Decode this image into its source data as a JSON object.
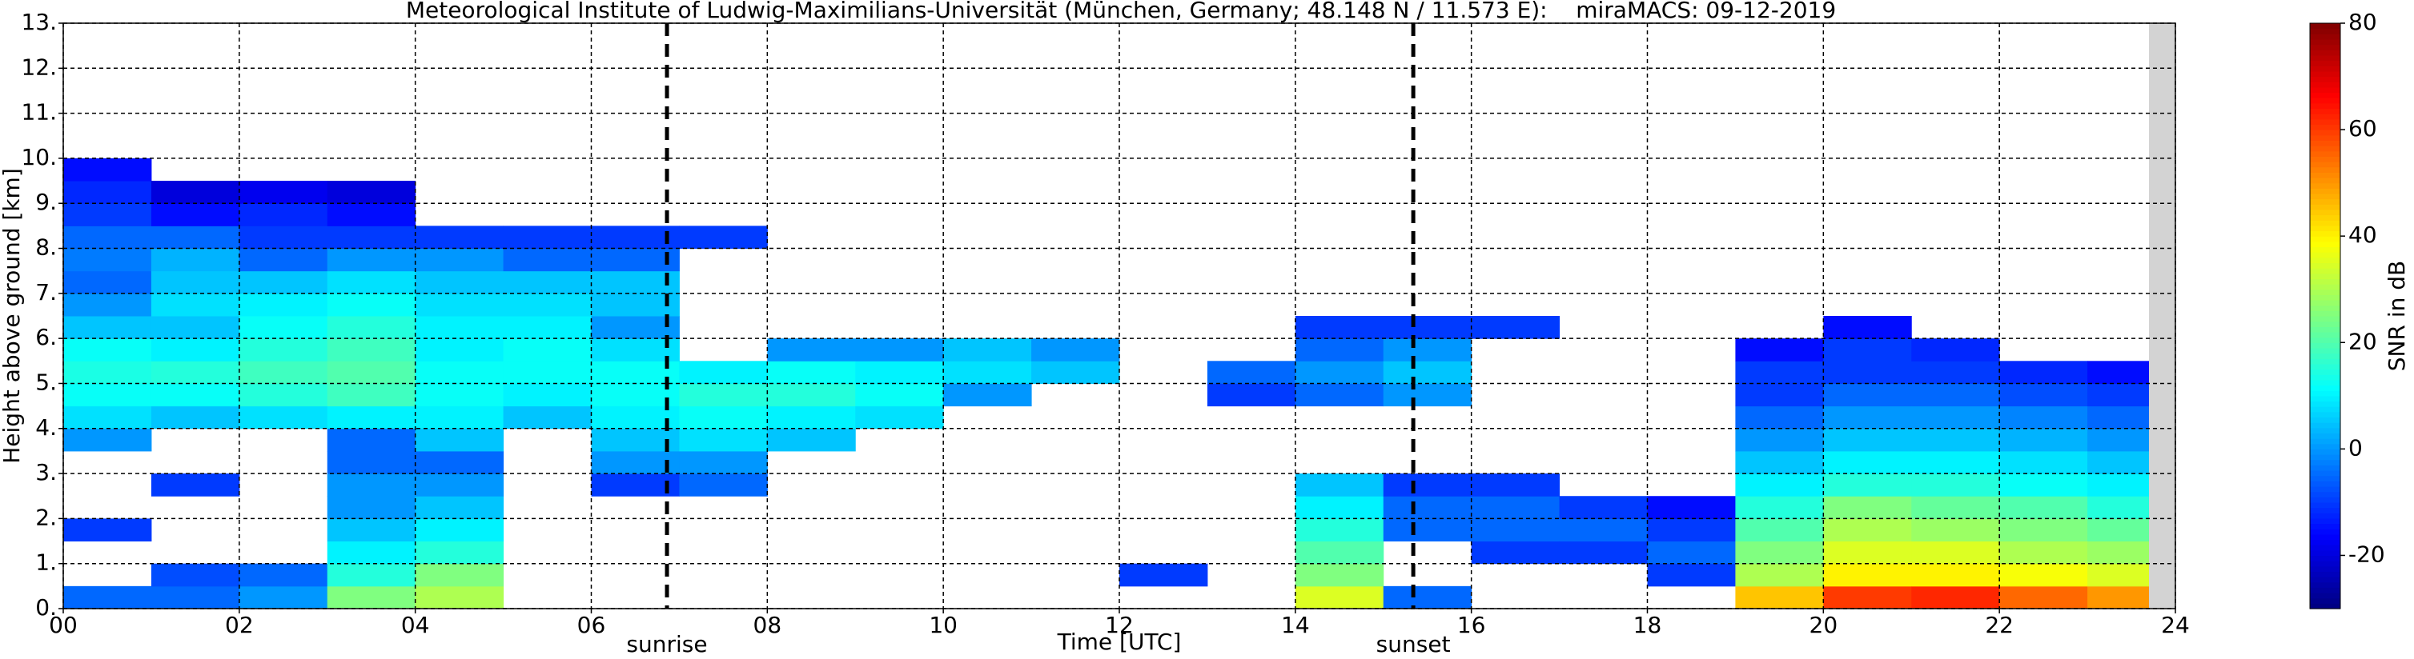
{
  "chart_data": {
    "type": "heatmap",
    "title": "Meteorological Institute of Ludwig-Maximilians-Universität (München, Germany; 48.148 N / 11.573 E):    miraMACS: 09-12-2019",
    "x_label": "Time [UTC]",
    "y_label": "Height above ground [km]",
    "colorbar_label": "SNR in dB",
    "colormap": "jet",
    "clim": [
      -30,
      80
    ],
    "cticks": [
      -20,
      0,
      20,
      40,
      60,
      80
    ],
    "xlim": [
      0,
      24
    ],
    "xticks": [
      {
        "value": 0,
        "label": "00"
      },
      {
        "value": 2,
        "label": "02"
      },
      {
        "value": 4,
        "label": "04"
      },
      {
        "value": 6,
        "label": "06"
      },
      {
        "value": 8,
        "label": "08"
      },
      {
        "value": 10,
        "label": "10"
      },
      {
        "value": 12,
        "label": "12"
      },
      {
        "value": 14,
        "label": "14"
      },
      {
        "value": 16,
        "label": "16"
      },
      {
        "value": 18,
        "label": "18"
      },
      {
        "value": 20,
        "label": "20"
      },
      {
        "value": 22,
        "label": "22"
      },
      {
        "value": 24,
        "label": "24"
      }
    ],
    "ylim": [
      0,
      13
    ],
    "yticks": [
      {
        "value": 0,
        "label": "0."
      },
      {
        "value": 1,
        "label": "1."
      },
      {
        "value": 2,
        "label": "2."
      },
      {
        "value": 3,
        "label": "3."
      },
      {
        "value": 4,
        "label": "4."
      },
      {
        "value": 5,
        "label": "5."
      },
      {
        "value": 6,
        "label": "6."
      },
      {
        "value": 7,
        "label": "7."
      },
      {
        "value": 8,
        "label": "8."
      },
      {
        "value": 9,
        "label": "9."
      },
      {
        "value": 10,
        "label": "10."
      },
      {
        "value": 11,
        "label": "11."
      },
      {
        "value": 12,
        "label": "12."
      },
      {
        "value": 13,
        "label": "13."
      }
    ],
    "grid": true,
    "annotations": [
      {
        "x": 6.86,
        "label": "sunrise"
      },
      {
        "x": 15.34,
        "label": "sunset"
      }
    ],
    "xbins": [
      0,
      1,
      2,
      3,
      4,
      5,
      6,
      7,
      8,
      9,
      10,
      11,
      12,
      13,
      14,
      15,
      16,
      17,
      18,
      19,
      20,
      21,
      22,
      23,
      24
    ],
    "ybins": [
      0,
      0.5,
      1,
      1.5,
      2,
      2.5,
      3,
      3.5,
      4,
      4.5,
      5,
      5.5,
      6,
      6.5,
      7,
      7.5,
      8,
      8.5,
      9,
      9.5,
      10
    ],
    "z": [
      [
        -5,
        null,
        null,
        -10,
        null,
        null,
        null,
        0,
        8,
        12,
        14,
        12,
        5,
        0,
        -5,
        -3,
        -5,
        -10,
        -12,
        -15
      ],
      [
        -5,
        -8,
        null,
        null,
        null,
        -10,
        null,
        null,
        5,
        12,
        15,
        10,
        5,
        8,
        5,
        3,
        -5,
        -15,
        -20,
        null
      ],
      [
        0,
        -5,
        null,
        null,
        null,
        null,
        null,
        null,
        8,
        15,
        18,
        15,
        12,
        10,
        5,
        -5,
        -10,
        -12,
        -18,
        null
      ],
      [
        25,
        15,
        10,
        5,
        0,
        0,
        -5,
        -5,
        10,
        18,
        20,
        18,
        15,
        12,
        8,
        0,
        -10,
        -15,
        -20,
        null
      ],
      [
        30,
        25,
        15,
        10,
        5,
        0,
        -5,
        5,
        10,
        12,
        12,
        10,
        10,
        8,
        5,
        0,
        -10,
        null,
        null,
        null
      ],
      [
        null,
        null,
        null,
        null,
        null,
        null,
        null,
        null,
        5,
        10,
        12,
        12,
        10,
        8,
        5,
        -5,
        -10,
        null,
        null,
        null
      ],
      [
        null,
        null,
        null,
        null,
        null,
        -10,
        0,
        5,
        10,
        12,
        12,
        8,
        0,
        5,
        5,
        -5,
        -10,
        null,
        null,
        null
      ],
      [
        null,
        null,
        null,
        null,
        null,
        -5,
        0,
        8,
        12,
        15,
        10,
        null,
        null,
        null,
        null,
        null,
        -10,
        null,
        null,
        null
      ],
      [
        null,
        null,
        null,
        null,
        null,
        null,
        null,
        5,
        10,
        15,
        12,
        0,
        null,
        null,
        null,
        null,
        null,
        null,
        null,
        null
      ],
      [
        null,
        null,
        null,
        null,
        null,
        null,
        null,
        null,
        8,
        12,
        10,
        0,
        null,
        null,
        null,
        null,
        null,
        null,
        null,
        null
      ],
      [
        null,
        null,
        null,
        null,
        null,
        null,
        null,
        null,
        null,
        0,
        8,
        5,
        null,
        null,
        null,
        null,
        null,
        null,
        null,
        null
      ],
      [
        null,
        null,
        null,
        null,
        null,
        null,
        null,
        null,
        null,
        null,
        5,
        0,
        null,
        null,
        null,
        null,
        null,
        null,
        null,
        null
      ],
      [
        null,
        -10,
        null,
        null,
        null,
        null,
        null,
        null,
        null,
        null,
        null,
        null,
        null,
        null,
        null,
        null,
        null,
        null,
        null,
        null
      ],
      [
        null,
        null,
        null,
        null,
        null,
        null,
        null,
        null,
        null,
        -10,
        -5,
        null,
        null,
        null,
        null,
        null,
        null,
        null,
        null,
        null
      ],
      [
        35,
        25,
        20,
        15,
        10,
        5,
        null,
        null,
        null,
        -5,
        0,
        -5,
        -10,
        null,
        null,
        null,
        null,
        null,
        null,
        null
      ],
      [
        -5,
        null,
        null,
        -5,
        -5,
        -10,
        null,
        null,
        null,
        0,
        5,
        0,
        -10,
        null,
        null,
        null,
        null,
        null,
        null,
        null
      ],
      [
        null,
        null,
        -10,
        -5,
        -5,
        -10,
        null,
        null,
        null,
        null,
        null,
        null,
        -10,
        null,
        null,
        null,
        null,
        null,
        null,
        null
      ],
      [
        null,
        null,
        -10,
        -5,
        -10,
        null,
        null,
        null,
        null,
        null,
        null,
        null,
        null,
        null,
        null,
        null,
        null,
        null,
        null,
        null
      ],
      [
        null,
        -10,
        -5,
        -10,
        -15,
        null,
        null,
        null,
        null,
        null,
        null,
        null,
        null,
        null,
        null,
        null,
        null,
        null,
        null,
        null
      ],
      [
        45,
        30,
        25,
        20,
        15,
        10,
        5,
        0,
        -5,
        -10,
        -10,
        -15,
        null,
        null,
        null,
        null,
        null,
        null,
        null,
        null
      ],
      [
        60,
        40,
        35,
        30,
        25,
        15,
        10,
        5,
        0,
        -5,
        -10,
        -10,
        -15,
        null,
        null,
        null,
        null,
        null,
        null,
        null
      ],
      [
        62,
        40,
        35,
        28,
        22,
        15,
        10,
        5,
        0,
        -5,
        -10,
        -12,
        null,
        null,
        null,
        null,
        null,
        null,
        null,
        null
      ],
      [
        55,
        38,
        30,
        25,
        20,
        12,
        8,
        3,
        -2,
        -8,
        -12,
        null,
        null,
        null,
        null,
        null,
        null,
        null,
        null,
        null
      ],
      [
        50,
        35,
        28,
        22,
        15,
        10,
        5,
        0,
        -5,
        -10,
        -15,
        null,
        null,
        null,
        null,
        null,
        null,
        null,
        null,
        null
      ]
    ]
  }
}
